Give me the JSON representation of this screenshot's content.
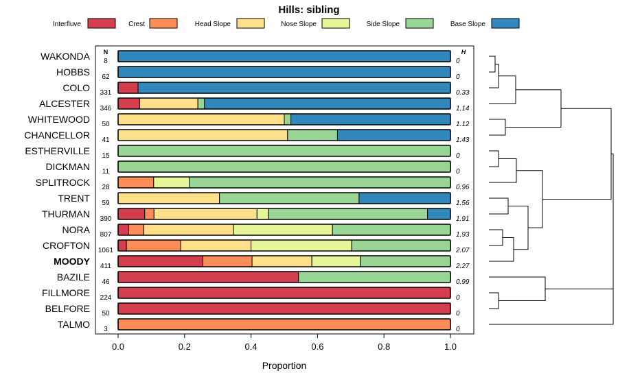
{
  "chart_data": {
    "type": "bar",
    "subtype": "stacked-horizontal-proportion",
    "title": "Hills: sibling",
    "xlabel": "Proportion",
    "ylabel": "",
    "xlim": [
      0,
      1
    ],
    "x_ticks": [
      "0.0",
      "0.2",
      "0.4",
      "0.6",
      "0.8",
      "1.0"
    ],
    "n_header": "N",
    "h_header": "H",
    "legend": [
      {
        "name": "Interfluve",
        "color": "#D53E4F"
      },
      {
        "name": "Crest",
        "color": "#FC8D59"
      },
      {
        "name": "Head Slope",
        "color": "#FEE08B"
      },
      {
        "name": "Nose Slope",
        "color": "#E6F598"
      },
      {
        "name": "Side Slope",
        "color": "#99D594"
      },
      {
        "name": "Base Slope",
        "color": "#3288BD"
      }
    ],
    "rows": [
      {
        "name": "WAKONDA",
        "n": "8",
        "h": "0",
        "bold": false,
        "values": [
          0,
          0,
          0,
          0,
          0,
          1.0
        ]
      },
      {
        "name": "HOBBS",
        "n": "62",
        "h": "0",
        "bold": false,
        "values": [
          0,
          0,
          0,
          0,
          0,
          1.0
        ]
      },
      {
        "name": "COLO",
        "n": "331",
        "h": "0.33",
        "bold": false,
        "values": [
          0.06,
          0,
          0,
          0,
          0,
          0.94
        ]
      },
      {
        "name": "ALCESTER",
        "n": "346",
        "h": "1.14",
        "bold": false,
        "values": [
          0.065,
          0,
          0.175,
          0,
          0.02,
          0.74
        ]
      },
      {
        "name": "WHITEWOOD",
        "n": "50",
        "h": "1.12",
        "bold": false,
        "values": [
          0,
          0,
          0.5,
          0,
          0.02,
          0.48
        ]
      },
      {
        "name": "CHANCELLOR",
        "n": "41",
        "h": "1.43",
        "bold": false,
        "values": [
          0,
          0,
          0.51,
          0,
          0.15,
          0.34
        ]
      },
      {
        "name": "ESTHERVILLE",
        "n": "15",
        "h": "0",
        "bold": false,
        "values": [
          0,
          0,
          0,
          0,
          1.0,
          0
        ]
      },
      {
        "name": "DICKMAN",
        "n": "11",
        "h": "0",
        "bold": false,
        "values": [
          0,
          0,
          0,
          0,
          1.0,
          0
        ]
      },
      {
        "name": "SPLITROCK",
        "n": "28",
        "h": "0.96",
        "bold": false,
        "values": [
          0,
          0.107,
          0,
          0.107,
          0.786,
          0
        ]
      },
      {
        "name": "TRENT",
        "n": "59",
        "h": "1.56",
        "bold": false,
        "values": [
          0,
          0,
          0.305,
          0,
          0.42,
          0.275
        ]
      },
      {
        "name": "THURMAN",
        "n": "390",
        "h": "1.91",
        "bold": false,
        "values": [
          0.08,
          0.028,
          0.31,
          0.035,
          0.478,
          0.069
        ]
      },
      {
        "name": "NORA",
        "n": "807",
        "h": "1.93",
        "bold": false,
        "values": [
          0.032,
          0.045,
          0.27,
          0.298,
          0.355,
          0
        ]
      },
      {
        "name": "CROFTON",
        "n": "1061",
        "h": "2.07",
        "bold": false,
        "values": [
          0.025,
          0.163,
          0.212,
          0.303,
          0.297,
          0
        ]
      },
      {
        "name": "MOODY",
        "n": "411",
        "h": "2.27",
        "bold": true,
        "values": [
          0.255,
          0.148,
          0.18,
          0.146,
          0.271,
          0
        ]
      },
      {
        "name": "BAZILE",
        "n": "46",
        "h": "0.99",
        "bold": false,
        "values": [
          0.543,
          0,
          0,
          0,
          0.457,
          0
        ]
      },
      {
        "name": "FILLMORE",
        "n": "224",
        "h": "0",
        "bold": false,
        "values": [
          1.0,
          0,
          0,
          0,
          0,
          0
        ]
      },
      {
        "name": "BELFORE",
        "n": "50",
        "h": "0",
        "bold": false,
        "values": [
          1.0,
          0,
          0,
          0,
          0,
          0
        ]
      },
      {
        "name": "TALMO",
        "n": "3",
        "h": "0",
        "bold": false,
        "values": [
          0,
          1.0,
          0,
          0,
          0,
          0
        ]
      }
    ]
  }
}
